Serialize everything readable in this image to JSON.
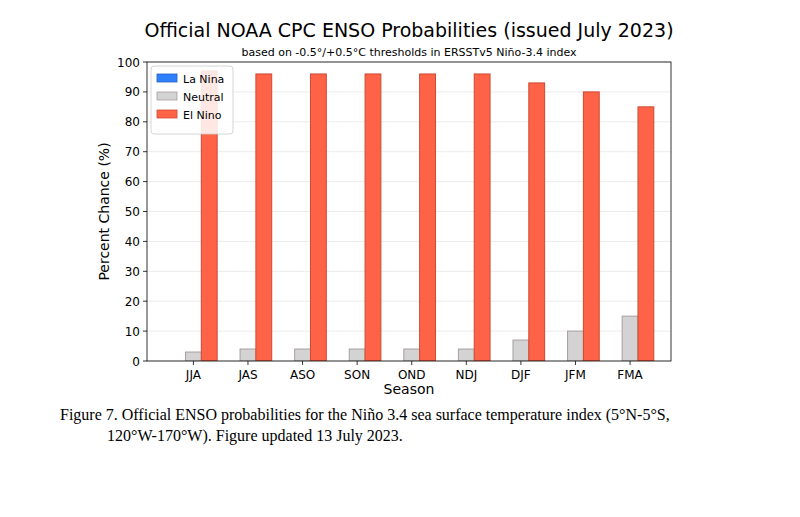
{
  "chart_data": {
    "type": "bar",
    "title": "Official NOAA CPC ENSO Probabilities (issued July 2023)",
    "subtitle": "based on -0.5°/+0.5°C thresholds in ERSSTv5 Niño-3.4 index",
    "x_label": "Season",
    "y_label": "Percent Chance (%)",
    "categories": [
      "JJA",
      "JAS",
      "ASO",
      "SON",
      "OND",
      "NDJ",
      "DJF",
      "JFM",
      "FMA"
    ],
    "series": [
      {
        "name": "La Nina",
        "color": "#2f7fff",
        "values": [
          0,
          0,
          0,
          0,
          0,
          0,
          0,
          0,
          0
        ]
      },
      {
        "name": "Neutral",
        "color": "#d3d3d3",
        "values": [
          3,
          4,
          4,
          4,
          4,
          4,
          7,
          10,
          15
        ]
      },
      {
        "name": "El Nino",
        "color": "#ff6347",
        "values": [
          97,
          96,
          96,
          96,
          96,
          96,
          93,
          90,
          85
        ]
      }
    ],
    "ylim": [
      0,
      100
    ],
    "yticks": [
      0,
      10,
      20,
      30,
      40,
      50,
      60,
      70,
      80,
      90,
      100
    ],
    "grid": true,
    "legend": "upper left",
    "caption": [
      "Figure 7. Official ENSO probabilities for the Niño 3.4 sea surface temperature index (5°N-5°S,",
      "120°W-170°W). Figure updated 13 July 2023."
    ]
  }
}
